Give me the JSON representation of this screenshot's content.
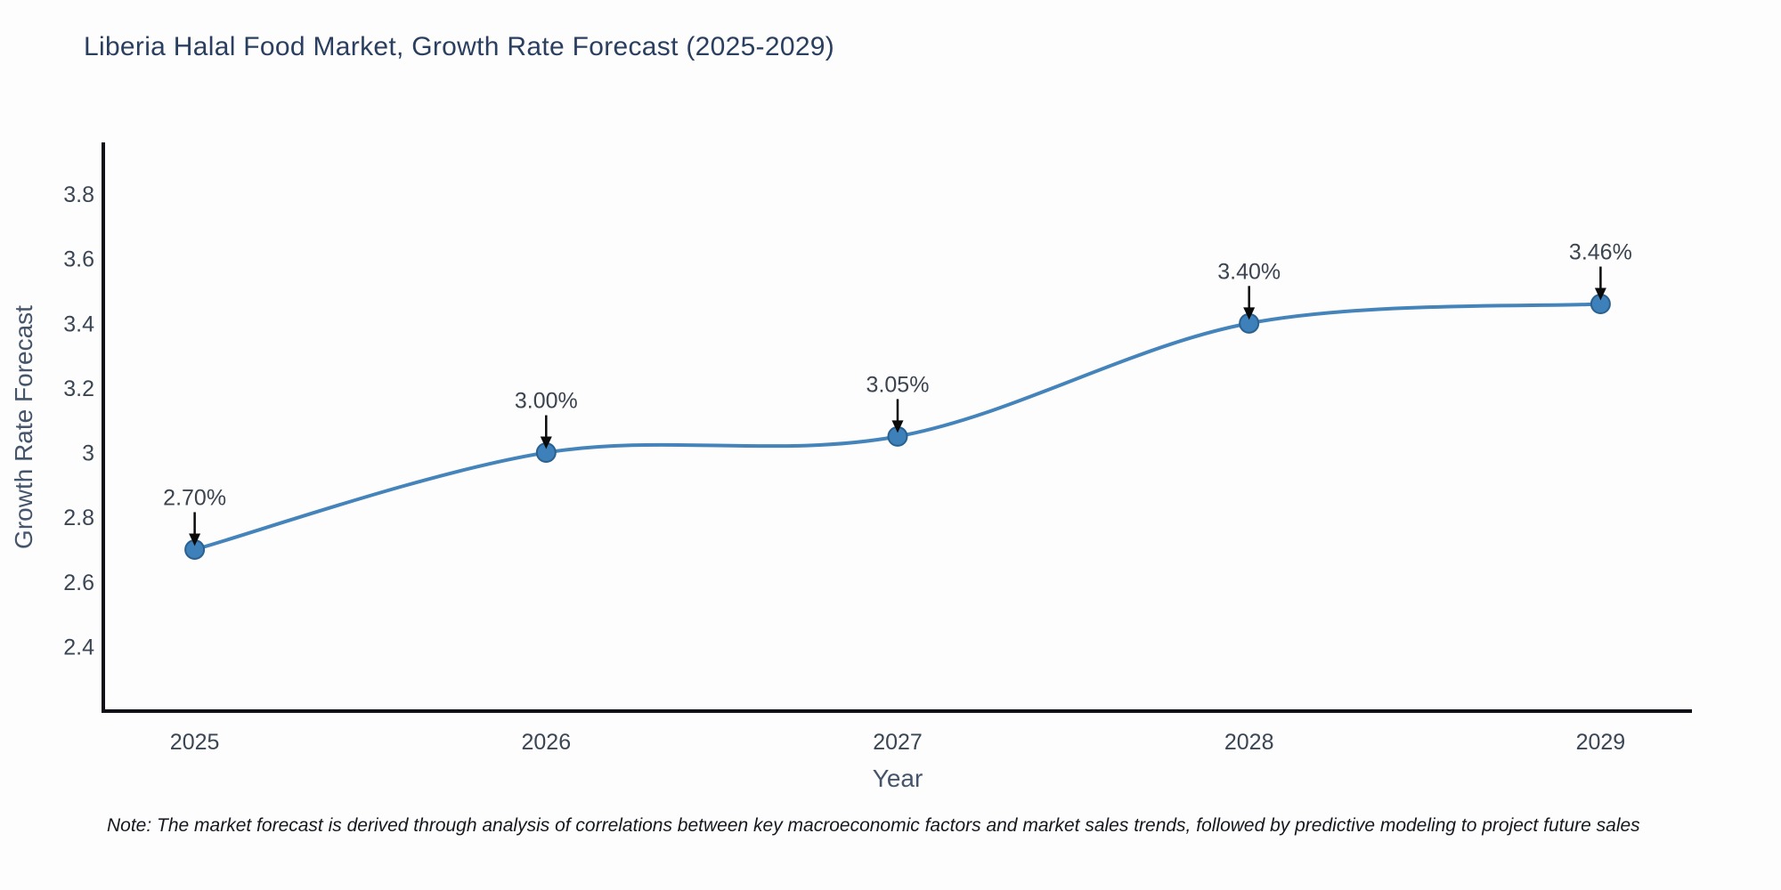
{
  "title": {
    "text": "Liberia Halal Food Market, Growth Rate Forecast (2025-2029)"
  },
  "note": {
    "text": "Note: The market forecast is derived through analysis of correlations between key macroeconomic factors and market sales trends, followed by predictive modeling to project future sales"
  },
  "chart_data": {
    "type": "line",
    "title": "Liberia Halal Food Market, Growth Rate Forecast (2025-2029)",
    "xlabel": "Year",
    "ylabel": "Growth Rate Forecast",
    "x": [
      2025,
      2026,
      2027,
      2028,
      2029
    ],
    "series": [
      {
        "name": "Growth Rate Forecast",
        "values": [
          2.7,
          3.0,
          3.05,
          3.4,
          3.46
        ]
      }
    ],
    "point_labels": [
      "2.70%",
      "3.00%",
      "3.05%",
      "3.40%",
      "3.46%"
    ],
    "x_ticks": [
      2025,
      2026,
      2027,
      2028,
      2029
    ],
    "x_tick_labels": [
      "2025",
      "2026",
      "2027",
      "2028",
      "2029"
    ],
    "y_ticks": [
      2.4,
      2.6,
      2.8,
      3,
      3.2,
      3.4,
      3.6,
      3.8
    ],
    "y_tick_labels": [
      "2.4",
      "2.6",
      "2.8",
      "3",
      "3.2",
      "3.4",
      "3.6",
      "3.8"
    ],
    "xlim": [
      2024.74,
      2029.26
    ],
    "ylim": [
      2.2,
      3.96
    ],
    "grid": false,
    "legend": false,
    "line_shape": "spline",
    "annotation_arrows": true,
    "colors": {
      "line": "#4484ba",
      "marker_fill": "#3d80ba",
      "marker_edge": "#2b608f",
      "axis_spine": "#0f1117",
      "arrow": "#0a0a0a",
      "title_text": "#2a3f5f",
      "axis_text": "#44546a",
      "tick_text": "#3b4655",
      "annotation_text": "#3b4450",
      "note_text": "#15181d",
      "background": "#fdfdfe"
    }
  }
}
